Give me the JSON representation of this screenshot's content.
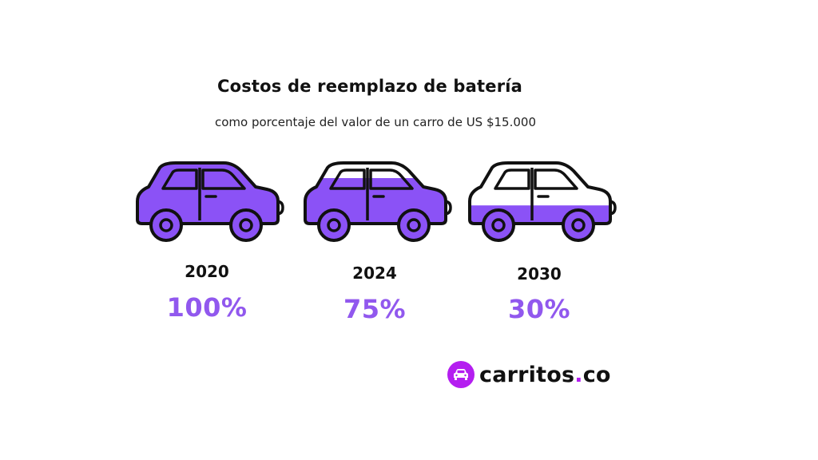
{
  "chart_data": {
    "type": "bar",
    "title": "Costos de reemplazo de batería",
    "subtitle": "como porcentaje del valor de un carro de US $15.000",
    "categories": [
      "2020",
      "2024",
      "2030"
    ],
    "values": [
      100,
      75,
      30
    ],
    "value_labels": [
      "100%",
      "75%",
      "30%"
    ],
    "ylim": [
      0,
      100
    ],
    "fill_color": "#8b52f6",
    "label_color": "#9158ee"
  },
  "logo": {
    "name": "carritos",
    "dot": ".",
    "tld": "co",
    "icon": "car-logo-icon",
    "color": "#b41ef0"
  }
}
